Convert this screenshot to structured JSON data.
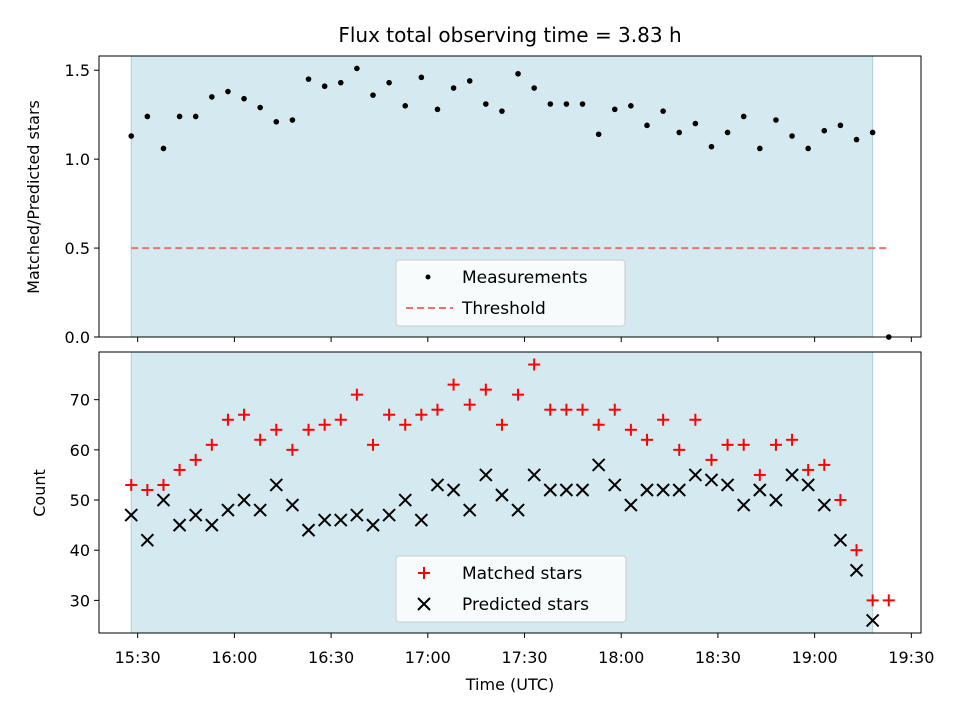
{
  "chart_data": [
    {
      "type": "scatter",
      "title": "Flux total observing time = 3.83 h",
      "ylabel": "Matched/Predicted stars",
      "ylim": [
        0,
        1.58
      ],
      "yticks": [
        0.0,
        0.5,
        1.0,
        1.5
      ],
      "ytick_labels": [
        "0.0",
        "0.5",
        "1.0",
        "1.5"
      ],
      "observing_span": [
        "15:28",
        "19:18"
      ],
      "legend": {
        "placement": "lower-center",
        "entries": [
          "Measurements",
          "Threshold"
        ]
      },
      "series": [
        {
          "name": "Measurements",
          "marker": "dot",
          "color": "#000000",
          "points": [
            [
              "15:28",
              1.13
            ],
            [
              "15:33",
              1.24
            ],
            [
              "15:38",
              1.06
            ],
            [
              "15:43",
              1.24
            ],
            [
              "15:48",
              1.24
            ],
            [
              "15:53",
              1.35
            ],
            [
              "15:58",
              1.38
            ],
            [
              "16:03",
              1.34
            ],
            [
              "16:08",
              1.29
            ],
            [
              "16:13",
              1.21
            ],
            [
              "16:18",
              1.22
            ],
            [
              "16:23",
              1.45
            ],
            [
              "16:28",
              1.41
            ],
            [
              "16:33",
              1.43
            ],
            [
              "16:38",
              1.51
            ],
            [
              "16:43",
              1.36
            ],
            [
              "16:48",
              1.43
            ],
            [
              "16:53",
              1.3
            ],
            [
              "16:58",
              1.46
            ],
            [
              "17:03",
              1.28
            ],
            [
              "17:08",
              1.4
            ],
            [
              "17:13",
              1.44
            ],
            [
              "17:18",
              1.31
            ],
            [
              "17:23",
              1.27
            ],
            [
              "17:28",
              1.48
            ],
            [
              "17:33",
              1.4
            ],
            [
              "17:38",
              1.31
            ],
            [
              "17:43",
              1.31
            ],
            [
              "17:48",
              1.31
            ],
            [
              "17:53",
              1.14
            ],
            [
              "17:58",
              1.28
            ],
            [
              "18:03",
              1.3
            ],
            [
              "18:08",
              1.19
            ],
            [
              "18:13",
              1.27
            ],
            [
              "18:18",
              1.15
            ],
            [
              "18:23",
              1.2
            ],
            [
              "18:28",
              1.07
            ],
            [
              "18:33",
              1.15
            ],
            [
              "18:38",
              1.24
            ],
            [
              "18:43",
              1.06
            ],
            [
              "18:48",
              1.22
            ],
            [
              "18:53",
              1.13
            ],
            [
              "18:58",
              1.06
            ],
            [
              "19:03",
              1.16
            ],
            [
              "19:08",
              1.19
            ],
            [
              "19:13",
              1.11
            ],
            [
              "19:18",
              1.15
            ],
            [
              "19:23",
              0.0
            ]
          ]
        },
        {
          "name": "Threshold",
          "marker": "dashed-line",
          "color": "#f07070",
          "points": [
            [
              "15:28",
              0.5
            ],
            [
              "19:23",
              0.5
            ]
          ]
        }
      ]
    },
    {
      "type": "scatter",
      "xlabel": "Time (UTC)",
      "ylabel": "Count",
      "ylim": [
        23.5,
        79.5
      ],
      "yticks": [
        30,
        40,
        50,
        60,
        70
      ],
      "ytick_labels": [
        "30",
        "40",
        "50",
        "60",
        "70"
      ],
      "xlim": [
        "15:18",
        "19:33"
      ],
      "xticks": [
        "15:30",
        "16:00",
        "16:30",
        "17:00",
        "17:30",
        "18:00",
        "18:30",
        "19:00",
        "19:30"
      ],
      "observing_span": [
        "15:28",
        "19:18"
      ],
      "legend": {
        "placement": "lower-center",
        "entries": [
          "Matched stars",
          "Predicted stars"
        ]
      },
      "times": [
        "15:28",
        "15:33",
        "15:38",
        "15:43",
        "15:48",
        "15:53",
        "15:58",
        "16:03",
        "16:08",
        "16:13",
        "16:18",
        "16:23",
        "16:28",
        "16:33",
        "16:38",
        "16:43",
        "16:48",
        "16:53",
        "16:58",
        "17:03",
        "17:08",
        "17:13",
        "17:18",
        "17:23",
        "17:28",
        "17:33",
        "17:38",
        "17:43",
        "17:48",
        "17:53",
        "17:58",
        "18:03",
        "18:08",
        "18:13",
        "18:18",
        "18:23",
        "18:28",
        "18:33",
        "18:38",
        "18:43",
        "18:48",
        "18:53",
        "18:58",
        "19:03",
        "19:08",
        "19:13",
        "19:18",
        "19:23"
      ],
      "series": [
        {
          "name": "Matched stars",
          "marker": "plus",
          "color": "#ff0000",
          "values": [
            53,
            52,
            53,
            56,
            58,
            61,
            66,
            67,
            62,
            64,
            60,
            64,
            65,
            66,
            71,
            61,
            67,
            65,
            67,
            68,
            73,
            69,
            72,
            65,
            71,
            77,
            68,
            68,
            68,
            65,
            68,
            64,
            62,
            66,
            60,
            66,
            58,
            61,
            61,
            55,
            61,
            62,
            56,
            57,
            50,
            40,
            30,
            30
          ]
        },
        {
          "name": "Predicted stars",
          "marker": "x",
          "color": "#000000",
          "values": [
            47,
            42,
            50,
            45,
            47,
            45,
            48,
            50,
            48,
            53,
            49,
            44,
            46,
            46,
            47,
            45,
            47,
            50,
            46,
            53,
            52,
            48,
            55,
            51,
            48,
            55,
            52,
            52,
            52,
            57,
            53,
            49,
            52,
            52,
            52,
            55,
            54,
            53,
            49,
            52,
            50,
            55,
            53,
            49,
            42,
            36,
            26,
            null
          ]
        }
      ]
    }
  ],
  "colors": {
    "observing_band": "#d4eaf0",
    "band_edge": "#a8d3de"
  }
}
